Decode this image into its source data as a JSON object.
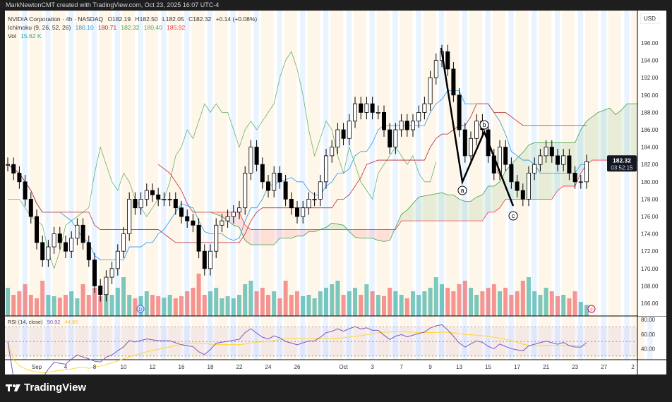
{
  "header": {
    "credit": "MarkNewtonCMT created with TradingView.com, Oct 23, 2025 16:07 UTC-4"
  },
  "legend": {
    "symbol": "NVIDIA Corporation · 4h · NASDAQ",
    "open": "O182.19",
    "high": "H182.50",
    "low": "L182.05",
    "close": "C182.32",
    "change": "+0.14 (+0.08%)",
    "ichimoku": {
      "label": "Ichimoku (9, 26, 52, 26)",
      "values": [
        "180.10",
        "180.71",
        "182.32",
        "180.40",
        "185.92"
      ],
      "colors": [
        "#2196f3",
        "#b22833",
        "#43a047",
        "#4caf50",
        "#f23645"
      ]
    },
    "vol": {
      "label": "Vol",
      "value": "15.62 K"
    },
    "rsi": {
      "label": "RSI (14, close)",
      "value": "50.92",
      "ma": "44.85"
    }
  },
  "price_axis": {
    "currency": "USD",
    "ticks": [
      "196.00",
      "194.00",
      "192.00",
      "190.00",
      "188.00",
      "186.00",
      "184.00",
      "182.00",
      "180.00",
      "178.00",
      "176.00",
      "174.00",
      "172.00",
      "170.00",
      "168.00",
      "166.00"
    ],
    "last_price": "182.32",
    "countdown": "03:52:15"
  },
  "rsi_axis": {
    "ticks": [
      "80.00",
      "60.00",
      "40.00"
    ]
  },
  "time_axis": {
    "ticks": [
      {
        "label": "Sep",
        "bar": 5
      },
      {
        "label": "4",
        "bar": 10
      },
      {
        "label": "8",
        "bar": 15
      },
      {
        "label": "10",
        "bar": 20
      },
      {
        "label": "12",
        "bar": 25
      },
      {
        "label": "16",
        "bar": 30
      },
      {
        "label": "18",
        "bar": 35
      },
      {
        "label": "22",
        "bar": 40
      },
      {
        "label": "24",
        "bar": 45
      },
      {
        "label": "26",
        "bar": 50
      },
      {
        "label": "Oct",
        "bar": 58
      },
      {
        "label": "3",
        "bar": 63
      },
      {
        "label": "7",
        "bar": 68
      },
      {
        "label": "9",
        "bar": 73
      },
      {
        "label": "13",
        "bar": 78
      },
      {
        "label": "15",
        "bar": 83
      },
      {
        "label": "17",
        "bar": 88
      },
      {
        "label": "21",
        "bar": 93
      },
      {
        "label": "23",
        "bar": 98
      },
      {
        "label": "27",
        "bar": 103
      },
      {
        "label": "2",
        "bar": 108
      }
    ]
  },
  "chart_data": {
    "type": "candlestick",
    "title": "NVIDIA Corporation · 4h · NASDAQ",
    "ylim": [
      164.5,
      197.5
    ],
    "closes": [
      182,
      181,
      180,
      178,
      176,
      173,
      171,
      172.5,
      174,
      173,
      172,
      173.5,
      175,
      173,
      171,
      168,
      167,
      169,
      170,
      172,
      174,
      178,
      177,
      178,
      179,
      178.5,
      178,
      178,
      178,
      177,
      176,
      175.5,
      175,
      172,
      170,
      172,
      175,
      175.5,
      176,
      176.5,
      177,
      181,
      184,
      182,
      180,
      179,
      181,
      180,
      178,
      177,
      176,
      177,
      178,
      178,
      180,
      183,
      184,
      186,
      185,
      187,
      189,
      188,
      189,
      188,
      188,
      186,
      184,
      186,
      187,
      186,
      187,
      188,
      189,
      192,
      194,
      195,
      193,
      190,
      186,
      183,
      185,
      187,
      186,
      183,
      181,
      184,
      182,
      180,
      179,
      178,
      181,
      182,
      183,
      184,
      183,
      182,
      183,
      181,
      180,
      180,
      182.32
    ],
    "volumes": [
      40,
      30,
      35,
      45,
      30,
      25,
      50,
      30,
      28,
      26,
      30,
      35,
      25,
      45,
      30,
      40,
      28,
      35,
      30,
      40,
      55,
      30,
      25,
      28,
      35,
      30,
      28,
      26,
      30,
      25,
      28,
      35,
      40,
      60,
      30,
      35,
      40,
      25,
      28,
      25,
      30,
      45,
      50,
      35,
      40,
      30,
      35,
      25,
      50,
      30,
      35,
      28,
      30,
      25,
      35,
      40,
      45,
      50,
      30,
      35,
      40,
      30,
      45,
      35,
      30,
      28,
      40,
      35,
      30,
      25,
      35,
      30,
      35,
      40,
      55,
      45,
      40,
      35,
      45,
      50,
      40,
      30,
      35,
      40,
      45,
      35,
      40,
      30,
      35,
      50,
      55,
      35,
      30,
      40,
      35,
      28,
      30,
      25,
      35,
      20,
      15.62
    ],
    "annotations": [
      {
        "label": "a"
      },
      {
        "label": "b"
      },
      {
        "label": "c"
      }
    ],
    "markers": [
      {
        "type": "dividend",
        "label": "D"
      },
      {
        "type": "earnings-lightning"
      }
    ],
    "indicators": [
      "Ichimoku (9, 26, 52, 26)",
      "Volume",
      "RSI (14, close)"
    ],
    "rsi_bands": [
      70,
      50,
      30
    ],
    "rsi_ylim": [
      25,
      85
    ],
    "colors": {
      "up": "#ffffff",
      "down": "#000000",
      "vol_up": "#26a69a",
      "vol_down": "#ef5350",
      "rsi": "#7e57c2",
      "rsi_ma": "#fdd835",
      "tenkan": "#2196f3",
      "kijun": "#b22833",
      "span_a": "#43a047",
      "span_b": "#f23645",
      "chikou": "#43a047"
    }
  }
}
